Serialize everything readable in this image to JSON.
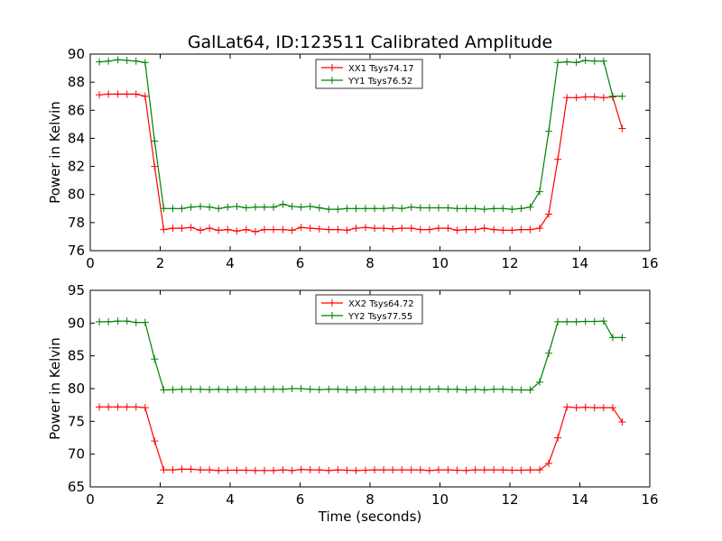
{
  "title": "GalLat64, ID:123511 Calibrated Amplitude",
  "colors": {
    "xx": "#ff0000",
    "yy": "#008000"
  },
  "chart_data": [
    {
      "type": "line",
      "ylabel": "Power in Kelvin",
      "xlabel": "",
      "xlim": [
        0,
        16
      ],
      "ylim": [
        76,
        90
      ],
      "xticks": [
        "0",
        "2",
        "4",
        "6",
        "8",
        "10",
        "12",
        "14",
        "16"
      ],
      "yticks": [
        "76",
        "78",
        "80",
        "82",
        "84",
        "86",
        "88",
        "90"
      ],
      "legend": "top-center",
      "x": [
        0.26,
        0.52,
        0.79,
        1.05,
        1.31,
        1.57,
        1.84,
        2.1,
        2.36,
        2.62,
        2.88,
        3.15,
        3.41,
        3.67,
        3.93,
        4.19,
        4.46,
        4.72,
        4.98,
        5.24,
        5.51,
        5.77,
        6.03,
        6.29,
        6.55,
        6.82,
        7.08,
        7.34,
        7.6,
        7.87,
        8.13,
        8.39,
        8.65,
        8.91,
        9.18,
        9.44,
        9.7,
        9.96,
        10.23,
        10.49,
        10.75,
        11.01,
        11.27,
        11.54,
        11.8,
        12.06,
        12.32,
        12.58,
        12.85,
        13.11,
        13.37,
        13.63,
        13.9,
        14.16,
        14.42,
        14.68,
        14.94,
        15.21
      ],
      "series": [
        {
          "name": "XX1 Tsys74.17",
          "values": [
            87.1,
            87.15,
            87.15,
            87.15,
            87.15,
            87.0,
            82.0,
            77.5,
            77.6,
            77.6,
            77.65,
            77.45,
            77.6,
            77.45,
            77.5,
            77.4,
            77.5,
            77.35,
            77.5,
            77.5,
            77.5,
            77.45,
            77.65,
            77.6,
            77.55,
            77.5,
            77.5,
            77.45,
            77.6,
            77.65,
            77.6,
            77.6,
            77.55,
            77.6,
            77.6,
            77.5,
            77.5,
            77.6,
            77.6,
            77.45,
            77.5,
            77.5,
            77.6,
            77.5,
            77.45,
            77.45,
            77.5,
            77.5,
            77.6,
            78.6,
            82.5,
            86.9,
            86.9,
            86.95,
            86.95,
            86.9,
            86.95,
            84.7
          ]
        },
        {
          "name": "YY1 Tsys76.52",
          "values": [
            89.45,
            89.5,
            89.6,
            89.55,
            89.5,
            89.4,
            83.8,
            79.0,
            79.0,
            79.0,
            79.1,
            79.15,
            79.1,
            79.0,
            79.1,
            79.15,
            79.05,
            79.1,
            79.1,
            79.1,
            79.3,
            79.15,
            79.1,
            79.15,
            79.05,
            78.95,
            78.95,
            79.0,
            79.0,
            79.0,
            79.0,
            79.0,
            79.05,
            79.0,
            79.1,
            79.05,
            79.05,
            79.05,
            79.05,
            79.0,
            79.0,
            79.0,
            78.95,
            79.0,
            79.0,
            78.95,
            79.0,
            79.1,
            80.2,
            84.5,
            89.4,
            89.45,
            89.4,
            89.55,
            89.5,
            89.5,
            87.0,
            87.0
          ]
        }
      ]
    },
    {
      "type": "line",
      "ylabel": "Power in Kelvin",
      "xlabel": "Time (seconds)",
      "xlim": [
        0,
        16
      ],
      "ylim": [
        65,
        95
      ],
      "xticks": [
        "0",
        "2",
        "4",
        "6",
        "8",
        "10",
        "12",
        "14",
        "16"
      ],
      "yticks": [
        "65",
        "70",
        "75",
        "80",
        "85",
        "90",
        "95"
      ],
      "legend": "top-center",
      "x": [
        0.26,
        0.52,
        0.79,
        1.05,
        1.31,
        1.57,
        1.84,
        2.1,
        2.36,
        2.62,
        2.88,
        3.15,
        3.41,
        3.67,
        3.93,
        4.19,
        4.46,
        4.72,
        4.98,
        5.24,
        5.51,
        5.77,
        6.03,
        6.29,
        6.55,
        6.82,
        7.08,
        7.34,
        7.6,
        7.87,
        8.13,
        8.39,
        8.65,
        8.91,
        9.18,
        9.44,
        9.7,
        9.96,
        10.23,
        10.49,
        10.75,
        11.01,
        11.27,
        11.54,
        11.8,
        12.06,
        12.32,
        12.58,
        12.85,
        13.11,
        13.37,
        13.63,
        13.9,
        14.16,
        14.42,
        14.68,
        14.94,
        15.21
      ],
      "series": [
        {
          "name": "XX2 Tsys64.72",
          "values": [
            77.2,
            77.2,
            77.2,
            77.2,
            77.2,
            77.1,
            72.0,
            67.6,
            67.6,
            67.7,
            67.7,
            67.6,
            67.6,
            67.5,
            67.55,
            67.55,
            67.55,
            67.5,
            67.5,
            67.5,
            67.6,
            67.5,
            67.65,
            67.6,
            67.6,
            67.5,
            67.6,
            67.55,
            67.5,
            67.55,
            67.6,
            67.6,
            67.6,
            67.6,
            67.6,
            67.6,
            67.5,
            67.6,
            67.6,
            67.55,
            67.5,
            67.6,
            67.6,
            67.6,
            67.6,
            67.55,
            67.55,
            67.6,
            67.6,
            68.6,
            72.5,
            77.2,
            77.1,
            77.15,
            77.1,
            77.1,
            77.1,
            74.9
          ]
        },
        {
          "name": "YY2 Tsys77.55",
          "values": [
            90.2,
            90.2,
            90.3,
            90.3,
            90.1,
            90.1,
            84.5,
            79.8,
            79.85,
            79.9,
            79.9,
            79.9,
            79.85,
            79.9,
            79.85,
            79.9,
            79.85,
            79.9,
            79.9,
            79.9,
            79.9,
            80.0,
            80.0,
            79.9,
            79.85,
            79.9,
            79.9,
            79.85,
            79.8,
            79.9,
            79.85,
            79.9,
            79.9,
            79.9,
            79.9,
            79.9,
            79.9,
            79.95,
            79.9,
            79.9,
            79.8,
            79.9,
            79.8,
            79.9,
            79.9,
            79.85,
            79.8,
            79.8,
            81.0,
            85.4,
            90.2,
            90.2,
            90.2,
            90.25,
            90.25,
            90.3,
            87.8,
            87.8
          ]
        }
      ]
    }
  ]
}
